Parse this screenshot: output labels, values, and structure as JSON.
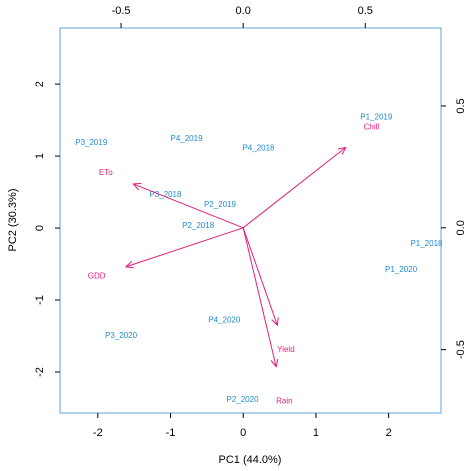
{
  "chart_data": {
    "type": "biplot",
    "x_label": "PC1 (44.0%)",
    "y_label": "PC2 (30.3%)",
    "xlim": [
      -2.52,
      2.72
    ],
    "ylim": [
      -2.57,
      2.78
    ],
    "xticks": [
      -2,
      -1,
      0,
      1,
      2
    ],
    "yticks": [
      -2,
      -1,
      0,
      1,
      2
    ],
    "x2lim": [
      -0.75,
      0.81
    ],
    "y2lim": [
      -0.76,
      0.82
    ],
    "x2ticks": [
      -0.5,
      {
        "value": 0,
        "label": "0.0"
      },
      0.5
    ],
    "y2ticks": [
      -0.5,
      {
        "value": 0,
        "label": "0.0"
      },
      0.5
    ],
    "scores": {
      "color": "#1f8ad0",
      "names": [
        "P1_2019",
        "P3_2019",
        "P4_2019",
        "P4_2018",
        "P3_2018",
        "P2_2019",
        "P2_2018",
        "P1_2018",
        "P1_2020",
        "P4_2020",
        "P3_2020",
        "P2_2020"
      ],
      "x": [
        1.83,
        -2.09,
        -0.78,
        0.21,
        -1.07,
        -0.32,
        -0.62,
        2.52,
        2.17,
        -0.26,
        -1.68,
        -0.01
      ],
      "y": [
        1.54,
        1.18,
        1.24,
        1.11,
        0.46,
        0.32,
        0.03,
        -0.22,
        -0.58,
        -1.28,
        -1.5,
        -2.39
      ]
    },
    "loadings": {
      "color": "#e0207a",
      "names": [
        "Chill",
        "ETo",
        "GDD",
        "Yield",
        "Rain"
      ],
      "x": [
        0.42,
        -0.45,
        -0.48,
        0.14,
        0.135
      ],
      "y": [
        0.33,
        0.18,
        -0.16,
        -0.4,
        -0.57
      ]
    }
  }
}
